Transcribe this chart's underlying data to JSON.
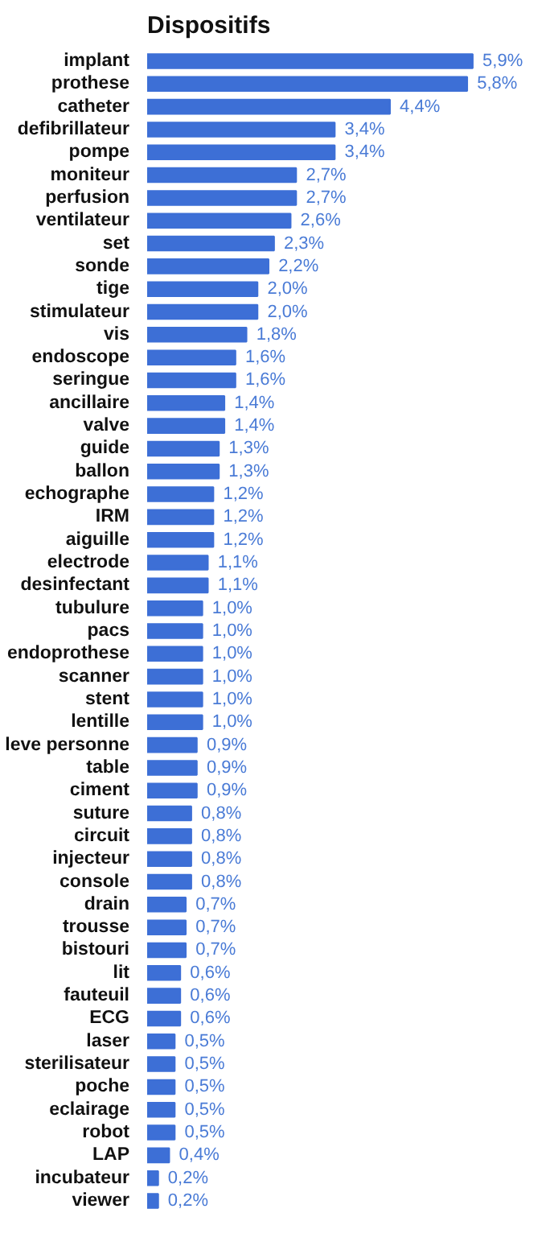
{
  "chart_data": {
    "type": "bar",
    "orientation": "horizontal",
    "title": "Dispositifs",
    "categories": [
      "implant",
      "prothese",
      "catheter",
      "defibrillateur",
      "pompe",
      "moniteur",
      "perfusion",
      "ventilateur",
      "set",
      "sonde",
      "tige",
      "stimulateur",
      "vis",
      "endoscope",
      "seringue",
      "ancillaire",
      "valve",
      "guide",
      "ballon",
      "echographe",
      "IRM",
      "aiguille",
      "electrode",
      "desinfectant",
      "tubulure",
      "pacs",
      "endoprothese",
      "scanner",
      "stent",
      "lentille",
      "leve personne",
      "table",
      "ciment",
      "suture",
      "circuit",
      "injecteur",
      "console",
      "drain",
      "trousse",
      "bistouri",
      "lit",
      "fauteuil",
      "ECG",
      "laser",
      "sterilisateur",
      "poche",
      "eclairage",
      "robot",
      "LAP",
      "incubateur",
      "viewer"
    ],
    "values": [
      5.9,
      5.8,
      4.4,
      3.4,
      3.4,
      2.7,
      2.7,
      2.6,
      2.3,
      2.2,
      2.0,
      2.0,
      1.8,
      1.6,
      1.6,
      1.4,
      1.4,
      1.3,
      1.3,
      1.2,
      1.2,
      1.2,
      1.1,
      1.1,
      1.0,
      1.0,
      1.0,
      1.0,
      1.0,
      1.0,
      0.9,
      0.9,
      0.9,
      0.8,
      0.8,
      0.8,
      0.8,
      0.7,
      0.7,
      0.7,
      0.6,
      0.6,
      0.6,
      0.5,
      0.5,
      0.5,
      0.5,
      0.5,
      0.4,
      0.2,
      0.2
    ],
    "value_labels": [
      "5,9%",
      "5,8%",
      "4,4%",
      "3,4%",
      "3,4%",
      "2,7%",
      "2,7%",
      "2,6%",
      "2,3%",
      "2,2%",
      "2,0%",
      "2,0%",
      "1,8%",
      "1,6%",
      "1,6%",
      "1,4%",
      "1,4%",
      "1,3%",
      "1,3%",
      "1,2%",
      "1,2%",
      "1,2%",
      "1,1%",
      "1,1%",
      "1,0%",
      "1,0%",
      "1,0%",
      "1,0%",
      "1,0%",
      "1,0%",
      "0,9%",
      "0,9%",
      "0,9%",
      "0,8%",
      "0,8%",
      "0,8%",
      "0,8%",
      "0,7%",
      "0,7%",
      "0,7%",
      "0,6%",
      "0,6%",
      "0,6%",
      "0,5%",
      "0,5%",
      "0,5%",
      "0,5%",
      "0,5%",
      "0,4%",
      "0,2%",
      "0,2%"
    ],
    "color": "#3d6fd6"
  }
}
